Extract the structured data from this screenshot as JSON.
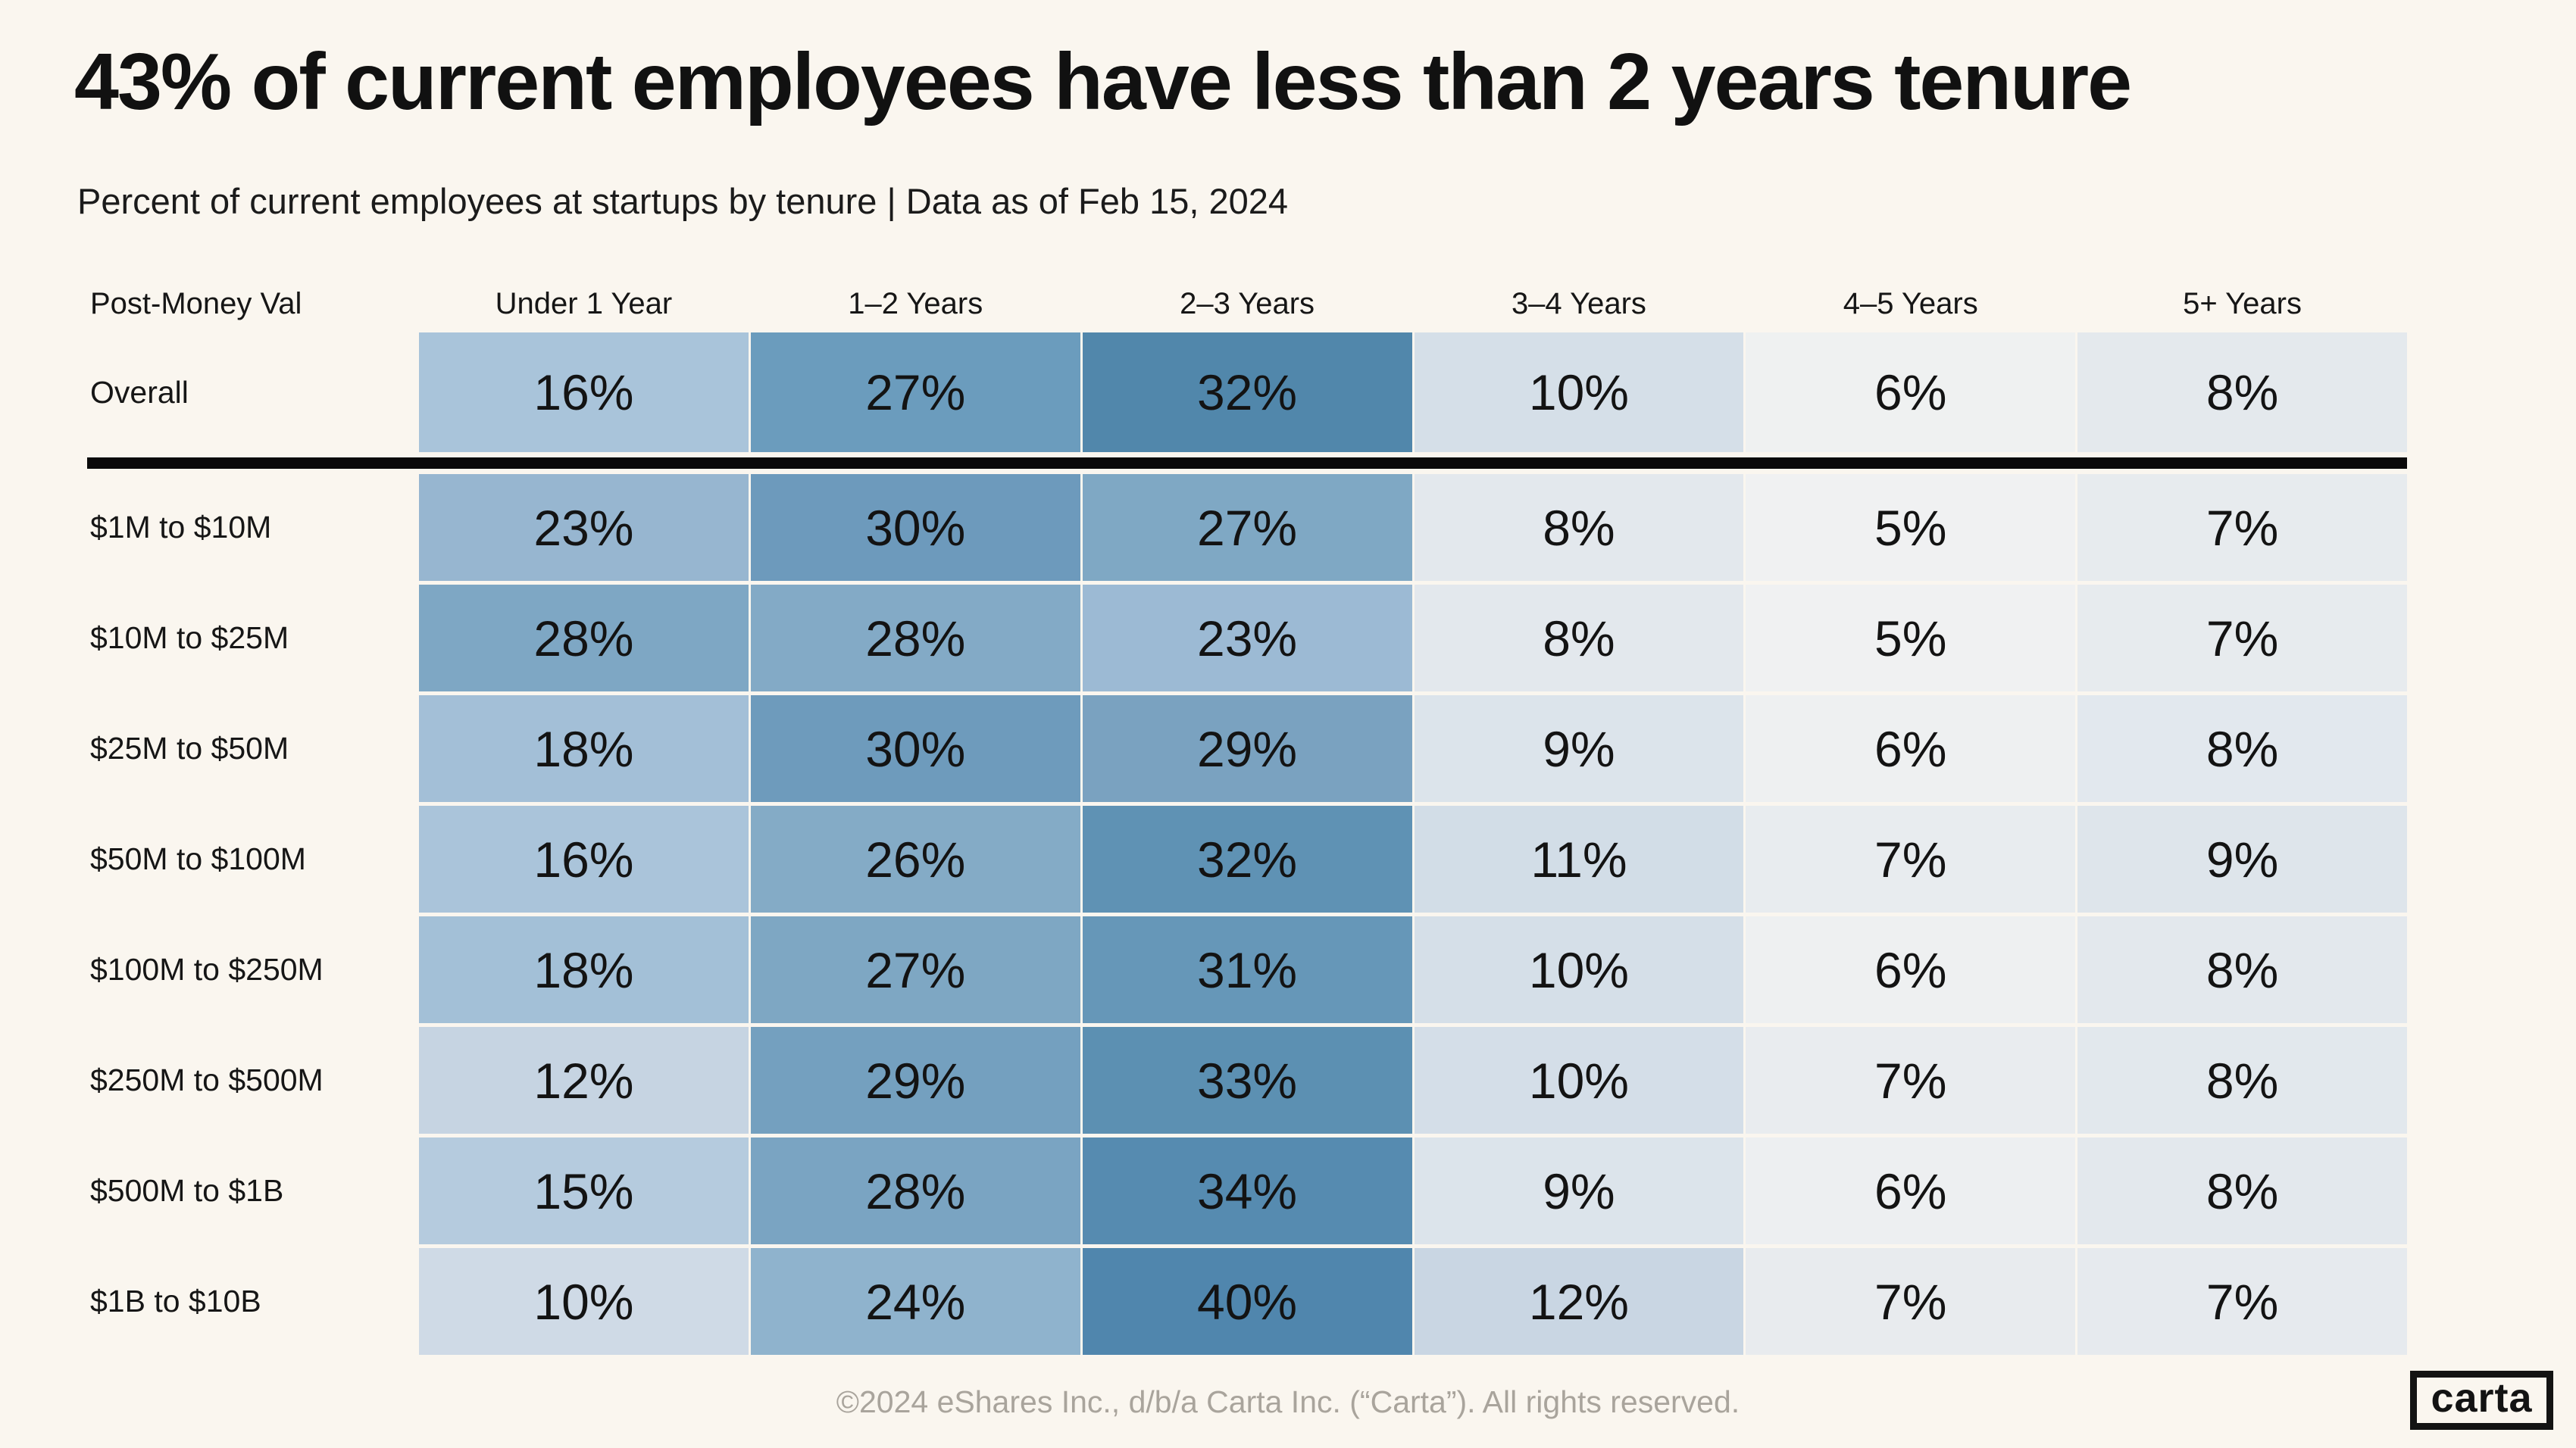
{
  "page": {
    "background": "#faf6ef",
    "title": "43% of current employees have less than 2 years tenure",
    "subtitle": "Percent of current employees at startups by tenure | Data as of Feb 15, 2024",
    "footer": "©2024 eShares Inc., d/b/a Carta Inc. (“Carta”). All rights reserved.",
    "logo_text": "carta"
  },
  "chart_data": {
    "type": "heatmap",
    "title": "43% of current employees have less than 2 years tenure",
    "subtitle": "Percent of current employees at startups by tenure | Data as of Feb 15, 2024",
    "unit": "%",
    "legend_position": "none",
    "row_header_label": "Post-Money Val",
    "columns": [
      "Under 1 Year",
      "1–2 Years",
      "2–3 Years",
      "3–4 Years",
      "4–5 Years",
      "5+ Years"
    ],
    "color_scale": {
      "min_value": 5,
      "min_color": "#f0f1f2",
      "max_value": 40,
      "max_color": "#5086ad"
    },
    "overall_row": {
      "label": "Overall",
      "values": [
        16,
        27,
        32,
        10,
        6,
        8
      ],
      "colors": [
        "#a9c4da",
        "#6b9cbd",
        "#5187ab",
        "#d5dfe8",
        "#eff1f1",
        "#e4e9ed"
      ]
    },
    "rows": [
      {
        "label": "$1M to $10M",
        "values": [
          23,
          30,
          27,
          8,
          5,
          7
        ],
        "colors": [
          "#97b6d0",
          "#6d9abc",
          "#7fa8c4",
          "#e3e8ed",
          "#f0f1f2",
          "#e7ebee"
        ]
      },
      {
        "label": "$10M to $25M",
        "values": [
          28,
          28,
          23,
          8,
          5,
          7
        ],
        "colors": [
          "#7ea7c4",
          "#83aac6",
          "#9cbad4",
          "#e3e8ed",
          "#f0f1f2",
          "#e7ebee"
        ]
      },
      {
        "label": "$25M to $50M",
        "values": [
          18,
          30,
          29,
          9,
          6,
          8
        ],
        "colors": [
          "#a3bfd7",
          "#6e9bbc",
          "#7aa2c0",
          "#dce4eb",
          "#eef0f1",
          "#e2e8ee"
        ]
      },
      {
        "label": "$50M to $100M",
        "values": [
          16,
          26,
          32,
          11,
          7,
          9
        ],
        "colors": [
          "#aac4da",
          "#84abc6",
          "#5f92b4",
          "#d2dde7",
          "#e8ecef",
          "#dee5eb"
        ]
      },
      {
        "label": "$100M to $250M",
        "values": [
          18,
          27,
          31,
          10,
          6,
          8
        ],
        "colors": [
          "#a3c0d7",
          "#7ea7c3",
          "#6697b8",
          "#d5dfe8",
          "#eef0f1",
          "#e3e8ed"
        ]
      },
      {
        "label": "$250M to $500M",
        "values": [
          12,
          29,
          33,
          10,
          7,
          8
        ],
        "colors": [
          "#c6d4e2",
          "#74a0bf",
          "#5c90b2",
          "#d4dee8",
          "#e9ecef",
          "#e2e8ed"
        ]
      },
      {
        "label": "$500M to $1B",
        "values": [
          15,
          28,
          34,
          9,
          6,
          8
        ],
        "colors": [
          "#b5cbde",
          "#7aa4c2",
          "#568bb0",
          "#dce4eb",
          "#edeff1",
          "#e3e8ed"
        ]
      },
      {
        "label": "$1B to $10B",
        "values": [
          10,
          24,
          40,
          12,
          7,
          7
        ],
        "colors": [
          "#cfdae6",
          "#8fb3cd",
          "#5086ad",
          "#c9d6e3",
          "#e8ebee",
          "#e6eaee"
        ]
      }
    ]
  }
}
